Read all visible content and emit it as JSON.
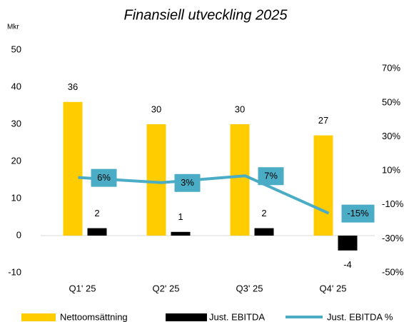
{
  "chart_data": {
    "type": "bar",
    "title": "Finansiell utveckling 2025",
    "y_label": "Mkr",
    "categories": [
      "Q1' 25",
      "Q2' 25",
      "Q3' 25",
      "Q4' 25"
    ],
    "series": [
      {
        "name": "Nettoomsättning",
        "color": "#FFCC00",
        "type": "bar",
        "values": [
          36,
          30,
          30,
          27
        ]
      },
      {
        "name": "Just. EBITDA",
        "color": "#000000",
        "type": "bar",
        "values": [
          2,
          1,
          2,
          -4
        ]
      },
      {
        "name": "Just. EBITDA %",
        "color": "#4BACC6",
        "type": "line",
        "axis": "y2",
        "values": [
          6,
          3,
          7,
          -15
        ],
        "value_labels": [
          "6%",
          "3%",
          "7%",
          "-15%"
        ]
      }
    ],
    "ylim": [
      -10,
      50
    ],
    "yticks": [
      -10,
      0,
      10,
      20,
      30,
      40,
      50
    ],
    "y2lim": [
      -50,
      81
    ],
    "y2ticks": [
      {
        "value": -50,
        "label": "-50%"
      },
      {
        "value": -30,
        "label": "-30%"
      },
      {
        "value": -10,
        "label": "-10%"
      },
      {
        "value": 10,
        "label": "10%"
      },
      {
        "value": 30,
        "label": "30%"
      },
      {
        "value": 50,
        "label": "50%"
      },
      {
        "value": 70,
        "label": "70%"
      }
    ],
    "legend": "bottom"
  }
}
